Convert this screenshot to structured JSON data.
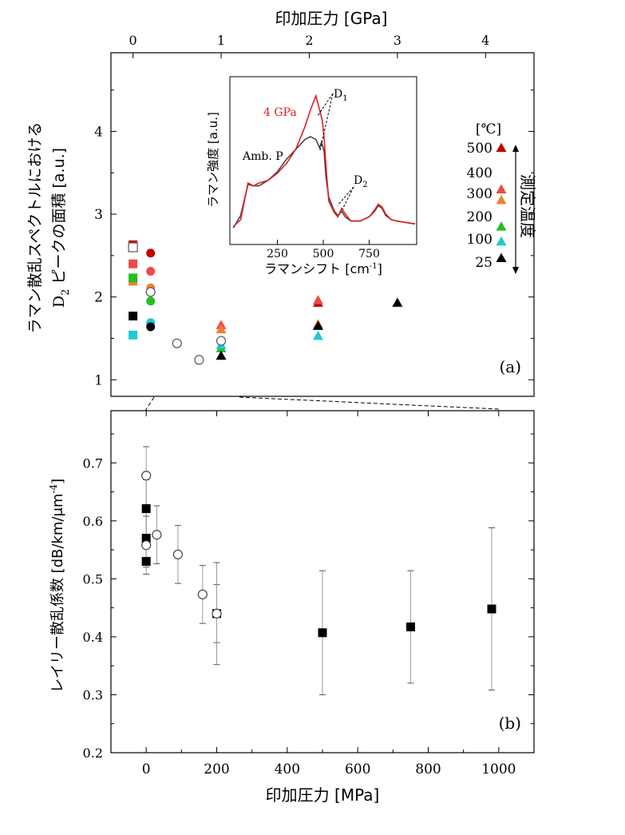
{
  "chart_data": [
    {
      "panel": "(a)",
      "type": "scatter",
      "top_xlabel": "印加圧力 [GPa]",
      "top_xticks": [
        "0",
        "1",
        "2",
        "3",
        "4"
      ],
      "top_xlim": [
        -0.25,
        4.55
      ],
      "ylabel_line1": "ラマン散乱スペクトルにおける",
      "ylabel_line2_pre": "D",
      "ylabel_line2_sub": "2",
      "ylabel_line2_post": " ピークの面積 [a.u.]",
      "yticks": [
        "1",
        "2",
        "3",
        "4"
      ],
      "ylim": [
        0.8,
        4.95
      ],
      "grid": false,
      "legend_title": "[℃]",
      "legend_entries": [
        {
          "label": "500",
          "color": "#c00000"
        },
        {
          "label": "400",
          "color": "#e04040"
        },
        {
          "label": "300",
          "color": "#f06060"
        },
        {
          "label": "200",
          "color": "#20c020"
        },
        {
          "label": "100",
          "color": "#20c8d0"
        },
        {
          "label": "25",
          "color": "#000000"
        }
      ],
      "legend_temps": [
        {
          "label": "500",
          "y": 3.8
        },
        {
          "label": "400",
          "y": 3.5
        },
        {
          "label": "300",
          "y": 3.25
        },
        {
          "label": "200",
          "y": 2.97
        },
        {
          "label": "100",
          "y": 2.7
        },
        {
          "label": "25",
          "y": 2.42
        }
      ],
      "legend_markers": [
        {
          "color": "#c00000",
          "y": 3.8
        },
        {
          "color": "#f04848",
          "y": 3.3
        },
        {
          "color": "#f08030",
          "y": 3.17
        },
        {
          "color": "#20c020",
          "y": 2.85
        },
        {
          "color": "#20c8d0",
          "y": 2.67
        },
        {
          "color": "#000000",
          "y": 2.47
        }
      ],
      "legend_arrow_label": "測定温度",
      "series": [
        {
          "name": "500",
          "color": "#c00000",
          "points": [
            [
              0.0,
              2.63,
              "square"
            ],
            [
              0.2,
              2.53,
              "circle"
            ],
            [
              2.1,
              1.93,
              "triangle"
            ]
          ]
        },
        {
          "name": "400",
          "color": "#f04848",
          "points": [
            [
              0.0,
              2.4,
              "square"
            ],
            [
              0.2,
              2.31,
              "circle"
            ],
            [
              1.0,
              1.66,
              "triangle"
            ],
            [
              2.1,
              1.96,
              "triangle"
            ]
          ]
        },
        {
          "name": "300",
          "color": "#f08030",
          "points": [
            [
              0.0,
              2.19,
              "square"
            ],
            [
              0.2,
              2.11,
              "circle"
            ],
            [
              1.0,
              1.61,
              "triangle"
            ],
            [
              2.1,
              1.67,
              "triangle"
            ]
          ]
        },
        {
          "name": "200",
          "color": "#20c020",
          "points": [
            [
              0.0,
              2.23,
              "square"
            ],
            [
              0.2,
              1.95,
              "circle"
            ],
            [
              1.0,
              1.38,
              "triangle"
            ]
          ]
        },
        {
          "name": "100",
          "color": "#20c8d0",
          "points": [
            [
              0.0,
              1.54,
              "square"
            ],
            [
              0.2,
              1.69,
              "circle"
            ],
            [
              1.0,
              1.42,
              "triangle"
            ],
            [
              2.1,
              1.53,
              "triangle"
            ]
          ]
        },
        {
          "name": "25",
          "color": "#000000",
          "points": [
            [
              0.0,
              1.77,
              "square"
            ],
            [
              0.2,
              1.64,
              "circle"
            ],
            [
              1.0,
              1.29,
              "triangle"
            ],
            [
              2.1,
              1.65,
              "triangle"
            ],
            [
              3.0,
              1.93,
              "triangle"
            ]
          ]
        },
        {
          "name": "",
          "color": "#555555",
          "points": [
            [
              0.0,
              2.6,
              "open-square"
            ],
            [
              0.2,
              2.06,
              "open-circle"
            ],
            [
              0.5,
              1.44,
              "open-circle"
            ],
            [
              0.75,
              1.24,
              "open-circle"
            ],
            [
              1.0,
              1.47,
              "open-circle"
            ]
          ]
        }
      ],
      "panel_label": "(a)"
    },
    {
      "panel": "inset",
      "type": "line",
      "xlabel": "ラマンシフト [cm",
      "xlabel_sup": "-1",
      "xlabel_end": "]",
      "ylabel": "ラマン強度 [a.u.]",
      "xticks": [
        "250",
        "500",
        "750"
      ],
      "xlim": [
        0,
        1000
      ],
      "ylim": [
        0,
        1
      ],
      "series": [
        {
          "name": "4 GPa",
          "color": "#e02020",
          "x": [
            10,
            50,
            90,
            120,
            150,
            200,
            250,
            300,
            350,
            400,
            430,
            460,
            480,
            495,
            505,
            515,
            530,
            560,
            580,
            600,
            620,
            650,
            700,
            750,
            780,
            800,
            820,
            840,
            870,
            900,
            950,
            1000
          ],
          "y": [
            0.07,
            0.12,
            0.38,
            0.36,
            0.38,
            0.4,
            0.45,
            0.52,
            0.62,
            0.78,
            0.9,
            1.0,
            0.9,
            0.82,
            0.7,
            0.5,
            0.25,
            0.17,
            0.14,
            0.2,
            0.16,
            0.11,
            0.11,
            0.14,
            0.19,
            0.23,
            0.21,
            0.16,
            0.12,
            0.11,
            0.1,
            0.09
          ]
        },
        {
          "name": "Amb. P",
          "color": "#444444",
          "x": [
            10,
            50,
            90,
            120,
            150,
            200,
            250,
            300,
            350,
            400,
            430,
            460,
            480,
            490,
            495,
            505,
            515,
            530,
            560,
            580,
            600,
            620,
            650,
            700,
            750,
            780,
            800,
            820,
            840,
            870,
            900,
            950,
            1000
          ],
          "y": [
            0.06,
            0.15,
            0.37,
            0.36,
            0.36,
            0.4,
            0.46,
            0.55,
            0.62,
            0.69,
            0.71,
            0.69,
            0.63,
            0.67,
            0.65,
            0.6,
            0.42,
            0.28,
            0.18,
            0.15,
            0.18,
            0.14,
            0.11,
            0.11,
            0.14,
            0.18,
            0.22,
            0.2,
            0.15,
            0.12,
            0.11,
            0.1,
            0.09
          ]
        }
      ],
      "annotations": [
        {
          "text": "4 GPa",
          "color": "#e02020"
        },
        {
          "text": "Amb. P",
          "color": "#000000"
        },
        {
          "text": "D",
          "sub": "1"
        },
        {
          "text": "D",
          "sub": "2"
        }
      ]
    },
    {
      "panel": "(b)",
      "type": "scatter",
      "xlabel": "印加圧力 [MPa]",
      "xticks": [
        "0",
        "200",
        "400",
        "600",
        "800",
        "1000"
      ],
      "xlim": [
        -100,
        1100
      ],
      "ylabel_pre": "レイリー散乱係数 [dB/km/μm",
      "ylabel_sup": "-4",
      "ylabel_post": "]",
      "yticks": [
        "0.2",
        "0.3",
        "0.4",
        "0.5",
        "0.6",
        "0.7"
      ],
      "ylim": [
        0.2,
        0.79
      ],
      "grid": false,
      "series": [
        {
          "name": "",
          "marker": "filled-square",
          "points": [
            {
              "x": 0,
              "y": 0.621,
              "err": 0.05
            },
            {
              "x": 0,
              "y": 0.57,
              "err": 0.05
            },
            {
              "x": 0,
              "y": 0.53,
              "err": 0.0
            },
            {
              "x": 200,
              "y": 0.44,
              "err": 0.05
            },
            {
              "x": 500,
              "y": 0.407,
              "err": 0.107
            },
            {
              "x": 750,
              "y": 0.417,
              "err": 0.097
            },
            {
              "x": 980,
              "y": 0.448,
              "err": 0.14
            }
          ]
        },
        {
          "name": "",
          "marker": "open-circle",
          "points": [
            {
              "x": 0,
              "y": 0.678,
              "err": 0.05
            },
            {
              "x": 0,
              "y": 0.558,
              "err": 0.05
            },
            {
              "x": 30,
              "y": 0.576,
              "err": 0.05
            },
            {
              "x": 90,
              "y": 0.542,
              "err": 0.05
            },
            {
              "x": 160,
              "y": 0.473,
              "err": 0.05
            },
            {
              "x": 200,
              "y": 0.44,
              "err": 0.088
            }
          ]
        }
      ],
      "panel_label": "(b)"
    }
  ]
}
